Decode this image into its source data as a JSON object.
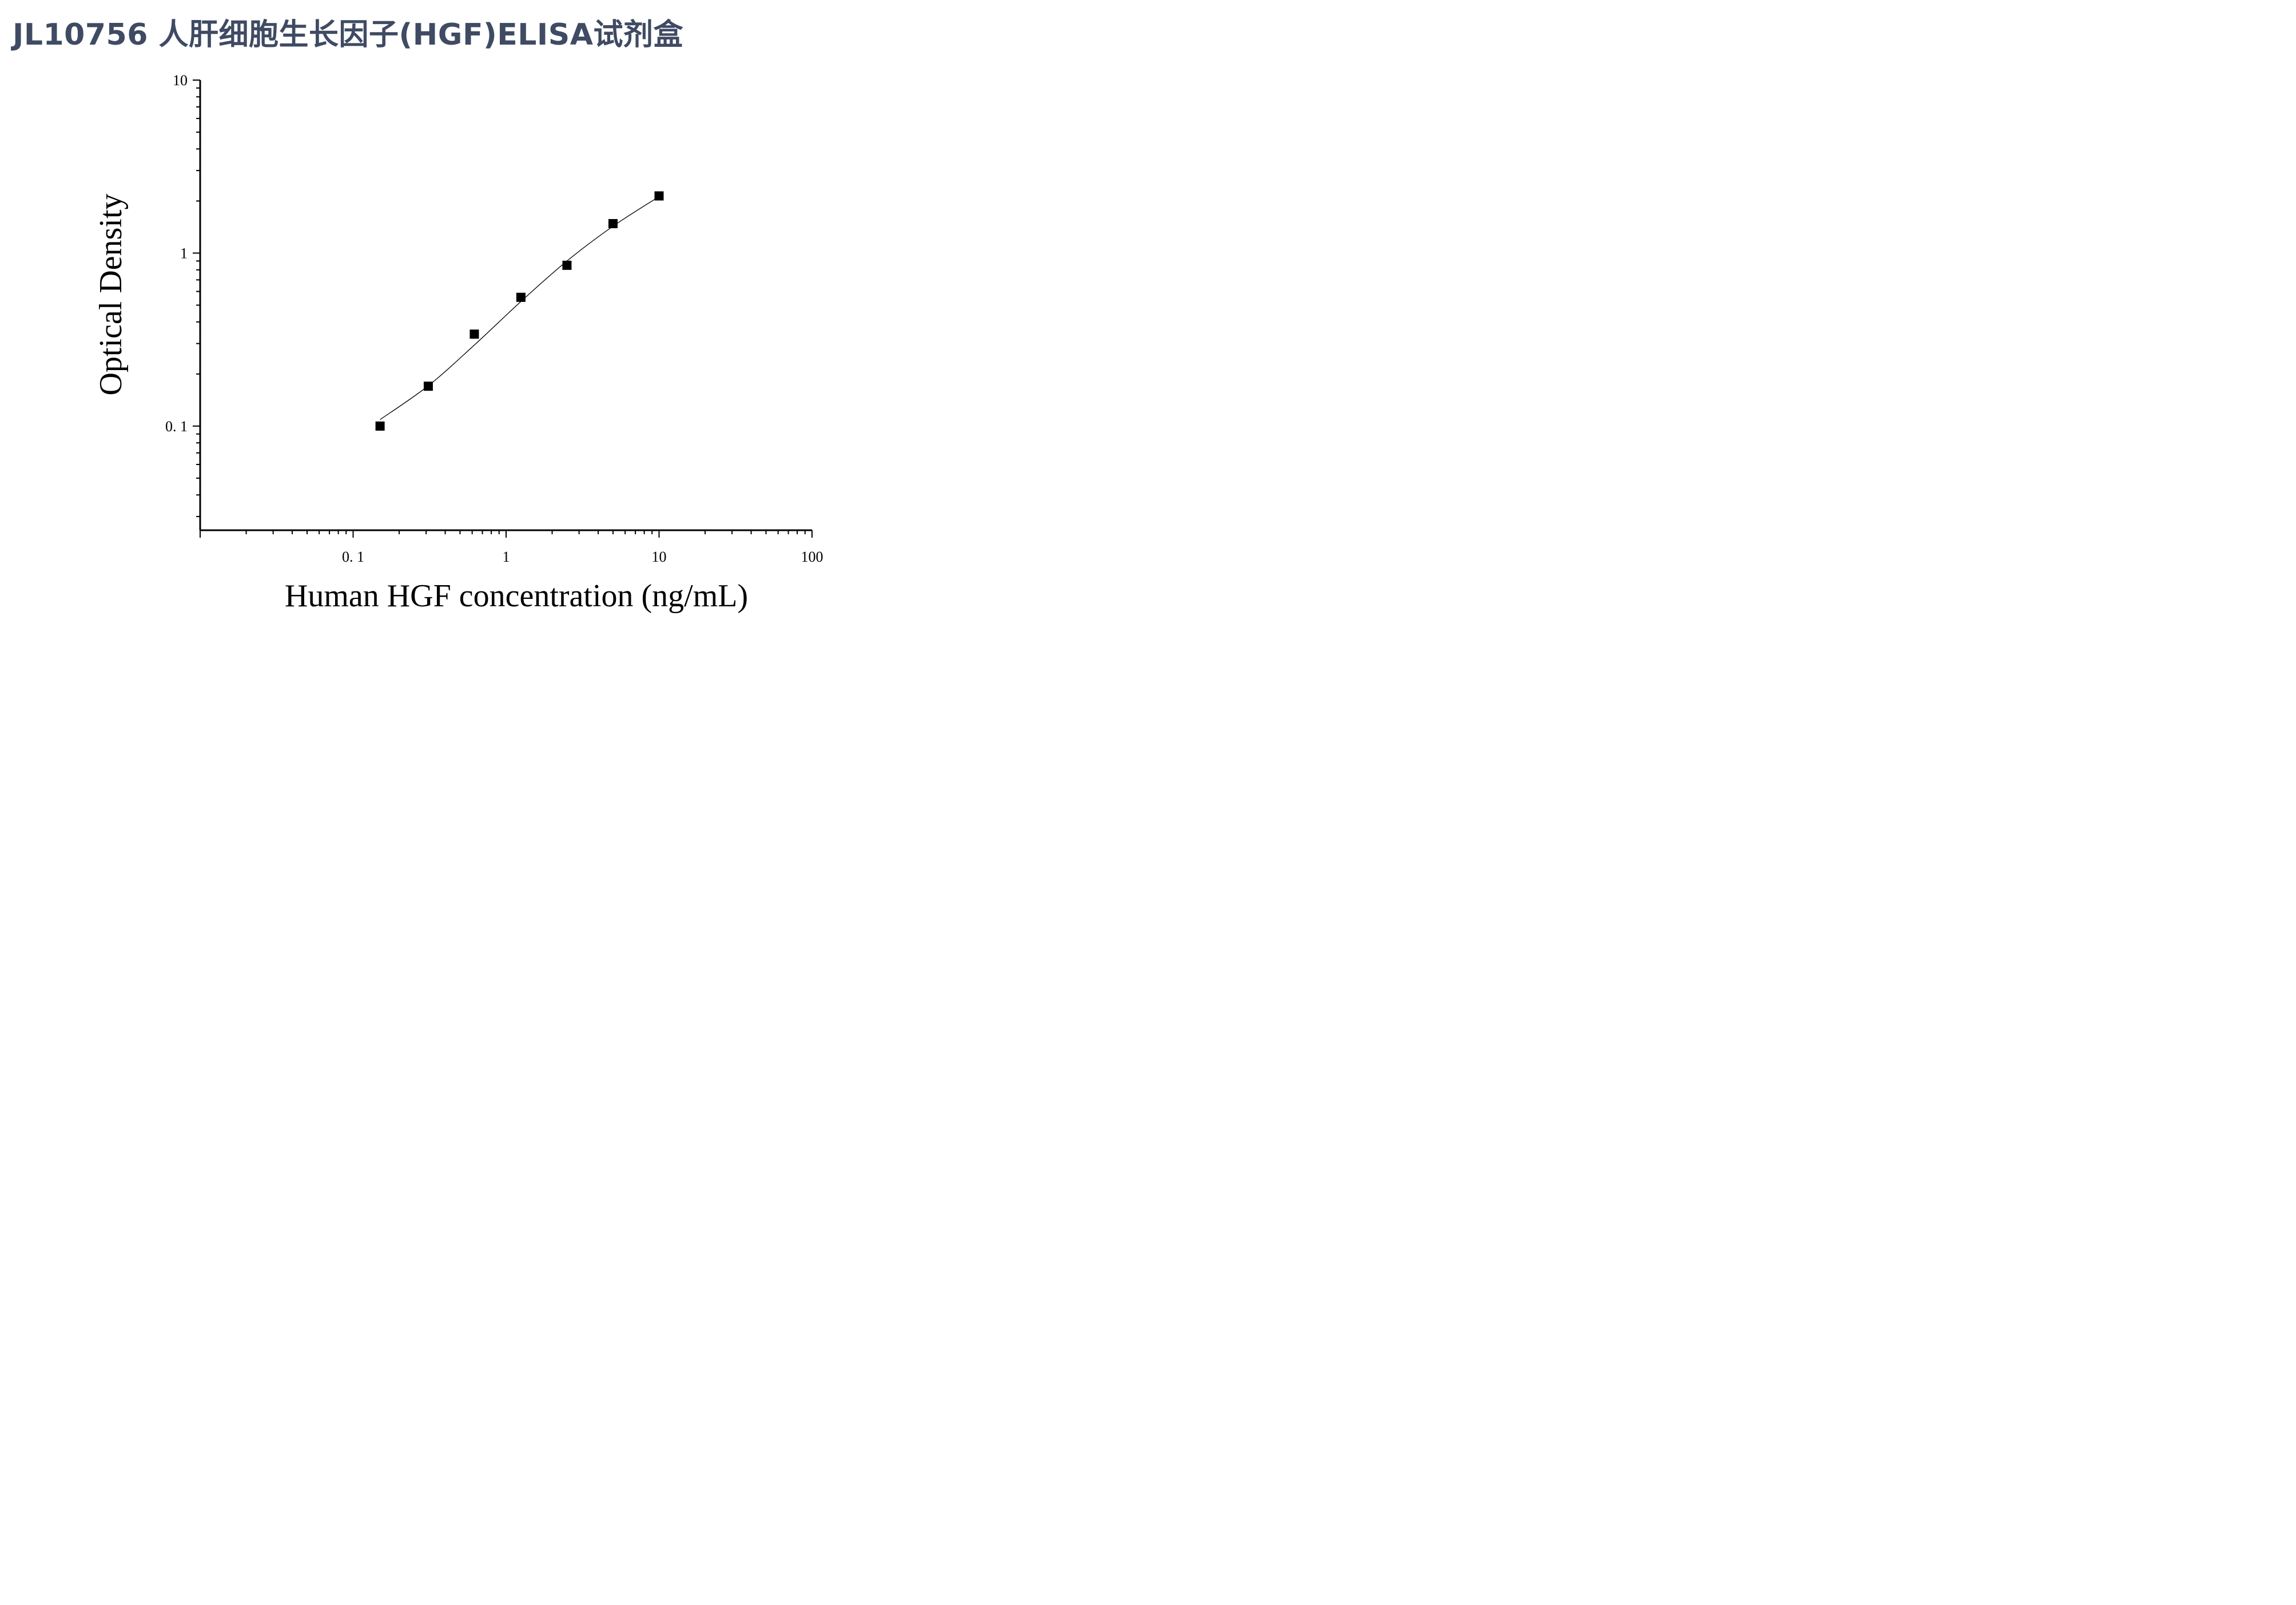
{
  "chart_data": {
    "type": "scatter",
    "title": "JL10756 人肝细胞生长因子(HGF)ELISA试剂盒",
    "xlabel": "Human HGF concentration (ng/mL)",
    "ylabel": "Optical Density",
    "x_scale": "log",
    "y_scale": "log",
    "xlim": [
      0.01,
      100
    ],
    "ylim": [
      0.025,
      10
    ],
    "x_tick_labels": [
      "0. 1",
      "1",
      "10",
      "100"
    ],
    "x_tick_values": [
      0.1,
      1,
      10,
      100
    ],
    "y_tick_labels": [
      "0. 1",
      "1",
      "10"
    ],
    "y_tick_values": [
      0.1,
      1,
      10
    ],
    "grid": false,
    "legend": "none",
    "marker": "square",
    "color": "#000000",
    "title_color": "#3f4a63",
    "series": [
      {
        "x": [
          0.15,
          0.31,
          0.62,
          1.25,
          2.5,
          5,
          10
        ],
        "y": [
          0.1,
          0.17,
          0.34,
          0.555,
          0.85,
          1.48,
          2.14
        ]
      }
    ],
    "fit_curve": {
      "x": [
        0.15,
        0.31,
        0.62,
        1.25,
        2.5,
        5,
        10
      ],
      "y": [
        0.109,
        0.171,
        0.294,
        0.525,
        0.9,
        1.43,
        2.12
      ]
    }
  }
}
